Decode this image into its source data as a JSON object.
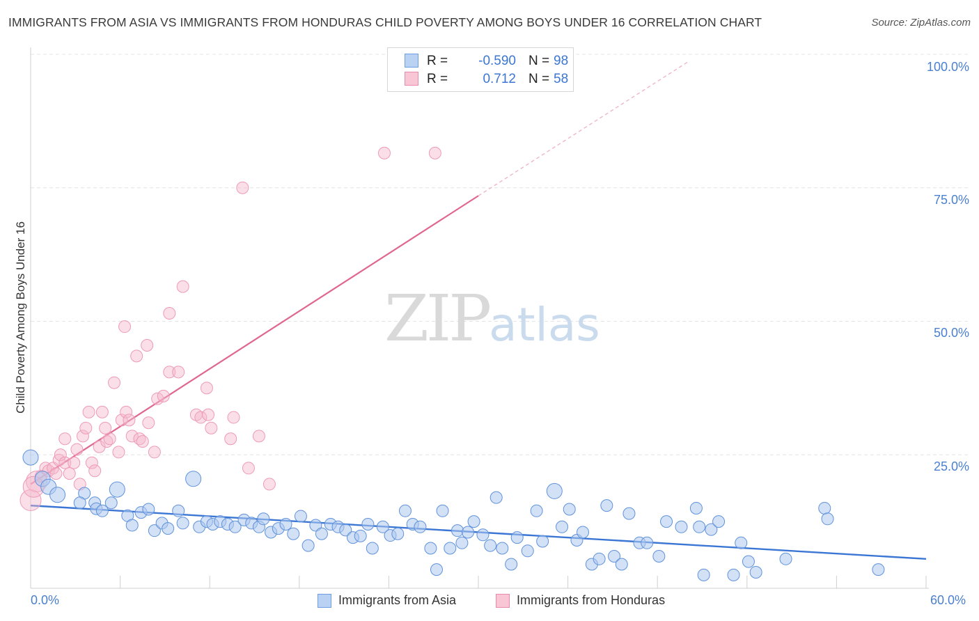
{
  "title": "IMMIGRANTS FROM ASIA VS IMMIGRANTS FROM HONDURAS CHILD POVERTY AMONG BOYS UNDER 16 CORRELATION CHART",
  "source": "Source: ZipAtlas.com",
  "watermark": {
    "zip": "ZIP",
    "atlas": "atlas"
  },
  "legend": {
    "asia": {
      "r_label": "R =",
      "r_value": "-0.590",
      "n_label": "N =",
      "n_value": "98"
    },
    "honduras": {
      "r_label": "R =",
      "r_value": "0.712",
      "n_label": "N =",
      "n_value": "58"
    }
  },
  "bottom_legend": {
    "asia": "Immigrants from Asia",
    "honduras": "Immigrants from Honduras"
  },
  "chart_data": {
    "type": "scatter",
    "title": "IMMIGRANTS FROM ASIA VS IMMIGRANTS FROM HONDURAS CHILD POVERTY AMONG BOYS UNDER 16 CORRELATION CHART",
    "xlabel": "",
    "ylabel": "Child Poverty Among Boys Under 16",
    "xlim": [
      0,
      60
    ],
    "ylim": [
      0,
      100
    ],
    "x_tick_labels": [
      "0.0%",
      "60.0%"
    ],
    "y_ticks": [
      25,
      50,
      75,
      100
    ],
    "y_tick_labels": [
      "25.0%",
      "50.0%",
      "75.0%",
      "100.0%"
    ],
    "grid": true,
    "legend_position": "top-center",
    "colors": {
      "asia": "#3b76d4",
      "asia_fill": "#aec8ee",
      "honduras": "#e06690",
      "honduras_fill": "#f4b8cb"
    },
    "series": [
      {
        "name": "Immigrants from Asia",
        "r": -0.59,
        "n": 98,
        "trend": [
          [
            0,
            15.5
          ],
          [
            60,
            5.5
          ]
        ],
        "points": [
          [
            0.0,
            24.5
          ],
          [
            0.8,
            20.5
          ],
          [
            1.2,
            19.0
          ],
          [
            1.8,
            17.5
          ],
          [
            3.6,
            17.8
          ],
          [
            3.3,
            16.0
          ],
          [
            4.3,
            16.0
          ],
          [
            4.4,
            14.9
          ],
          [
            4.8,
            14.5
          ],
          [
            5.4,
            16.0
          ],
          [
            5.8,
            18.5
          ],
          [
            6.5,
            13.6
          ],
          [
            6.8,
            11.8
          ],
          [
            7.4,
            14.2
          ],
          [
            7.9,
            14.8
          ],
          [
            8.3,
            10.8
          ],
          [
            8.8,
            12.2
          ],
          [
            9.2,
            11.2
          ],
          [
            9.9,
            14.5
          ],
          [
            10.2,
            12.2
          ],
          [
            10.9,
            20.5
          ],
          [
            11.3,
            11.5
          ],
          [
            11.8,
            12.5
          ],
          [
            12.2,
            12.0
          ],
          [
            12.7,
            12.5
          ],
          [
            13.2,
            12.0
          ],
          [
            13.7,
            11.5
          ],
          [
            14.3,
            12.8
          ],
          [
            14.8,
            12.2
          ],
          [
            15.3,
            11.5
          ],
          [
            15.6,
            13.0
          ],
          [
            16.1,
            10.5
          ],
          [
            16.6,
            11.2
          ],
          [
            17.1,
            12.0
          ],
          [
            17.6,
            10.2
          ],
          [
            18.1,
            13.5
          ],
          [
            18.6,
            8.0
          ],
          [
            19.1,
            11.8
          ],
          [
            19.5,
            10.2
          ],
          [
            20.1,
            12.0
          ],
          [
            20.6,
            11.5
          ],
          [
            21.1,
            10.9
          ],
          [
            21.6,
            9.5
          ],
          [
            22.1,
            9.8
          ],
          [
            22.6,
            12.0
          ],
          [
            22.9,
            7.5
          ],
          [
            23.6,
            11.5
          ],
          [
            24.1,
            9.9
          ],
          [
            24.6,
            10.2
          ],
          [
            25.1,
            14.5
          ],
          [
            25.6,
            12.0
          ],
          [
            26.1,
            11.5
          ],
          [
            26.8,
            7.5
          ],
          [
            27.2,
            3.5
          ],
          [
            27.6,
            14.5
          ],
          [
            28.1,
            7.5
          ],
          [
            28.6,
            10.8
          ],
          [
            28.9,
            8.5
          ],
          [
            29.3,
            10.5
          ],
          [
            29.7,
            12.5
          ],
          [
            30.3,
            10.0
          ],
          [
            30.8,
            8.0
          ],
          [
            31.2,
            17.0
          ],
          [
            31.6,
            7.5
          ],
          [
            32.2,
            4.5
          ],
          [
            32.6,
            9.5
          ],
          [
            33.3,
            7.0
          ],
          [
            33.9,
            14.5
          ],
          [
            34.3,
            8.8
          ],
          [
            35.1,
            18.2
          ],
          [
            35.6,
            11.5
          ],
          [
            36.1,
            14.8
          ],
          [
            36.6,
            9.0
          ],
          [
            37.0,
            10.5
          ],
          [
            37.6,
            4.5
          ],
          [
            38.1,
            5.5
          ],
          [
            38.6,
            15.5
          ],
          [
            39.1,
            6.0
          ],
          [
            39.6,
            4.5
          ],
          [
            40.1,
            14.0
          ],
          [
            40.8,
            8.5
          ],
          [
            41.3,
            8.5
          ],
          [
            42.1,
            6.0
          ],
          [
            42.6,
            12.5
          ],
          [
            43.6,
            11.5
          ],
          [
            44.6,
            15.0
          ],
          [
            44.8,
            11.5
          ],
          [
            45.1,
            2.5
          ],
          [
            45.6,
            11.0
          ],
          [
            46.1,
            12.5
          ],
          [
            47.1,
            2.5
          ],
          [
            47.6,
            8.5
          ],
          [
            48.1,
            5.0
          ],
          [
            48.6,
            3.0
          ],
          [
            50.6,
            5.5
          ],
          [
            53.2,
            15.0
          ],
          [
            53.4,
            13.0
          ],
          [
            56.8,
            3.5
          ]
        ]
      },
      {
        "name": "Immigrants from Honduras",
        "r": 0.712,
        "n": 58,
        "trend": [
          [
            0,
            19.5
          ],
          [
            30,
            73.5
          ]
        ],
        "trend_extension": [
          [
            30,
            73.5
          ],
          [
            44,
            98.5
          ]
        ],
        "points": [
          [
            0.0,
            16.5
          ],
          [
            0.4,
            20.0
          ],
          [
            0.7,
            21.0
          ],
          [
            1.0,
            22.5
          ],
          [
            1.2,
            22.0
          ],
          [
            1.5,
            22.5
          ],
          [
            1.7,
            21.5
          ],
          [
            1.9,
            24.0
          ],
          [
            2.0,
            25.0
          ],
          [
            2.3,
            23.5
          ],
          [
            2.3,
            28.0
          ],
          [
            2.6,
            21.5
          ],
          [
            2.9,
            23.5
          ],
          [
            3.1,
            26.0
          ],
          [
            3.3,
            19.5
          ],
          [
            3.5,
            28.5
          ],
          [
            3.7,
            30.0
          ],
          [
            3.9,
            33.0
          ],
          [
            4.1,
            23.5
          ],
          [
            4.3,
            22.0
          ],
          [
            4.6,
            26.5
          ],
          [
            4.8,
            33.0
          ],
          [
            5.0,
            30.0
          ],
          [
            5.1,
            27.5
          ],
          [
            5.3,
            28.0
          ],
          [
            5.6,
            38.5
          ],
          [
            5.9,
            25.5
          ],
          [
            6.1,
            31.5
          ],
          [
            6.3,
            49.0
          ],
          [
            6.4,
            33.0
          ],
          [
            6.6,
            31.5
          ],
          [
            6.8,
            28.5
          ],
          [
            7.1,
            43.5
          ],
          [
            7.3,
            28.0
          ],
          [
            7.5,
            27.5
          ],
          [
            7.8,
            45.5
          ],
          [
            7.9,
            31.0
          ],
          [
            8.3,
            25.5
          ],
          [
            8.5,
            35.5
          ],
          [
            8.9,
            36.0
          ],
          [
            9.3,
            51.5
          ],
          [
            9.3,
            40.5
          ],
          [
            9.9,
            40.5
          ],
          [
            10.2,
            56.5
          ],
          [
            11.1,
            32.5
          ],
          [
            11.4,
            32.0
          ],
          [
            11.8,
            37.5
          ],
          [
            11.9,
            32.5
          ],
          [
            12.1,
            30.0
          ],
          [
            13.4,
            28.0
          ],
          [
            13.6,
            32.0
          ],
          [
            14.2,
            75.0
          ],
          [
            14.6,
            22.5
          ],
          [
            15.3,
            28.5
          ],
          [
            16.0,
            19.5
          ],
          [
            23.7,
            81.5
          ],
          [
            27.1,
            81.5
          ],
          [
            0.2,
            19.0
          ]
        ]
      }
    ]
  }
}
